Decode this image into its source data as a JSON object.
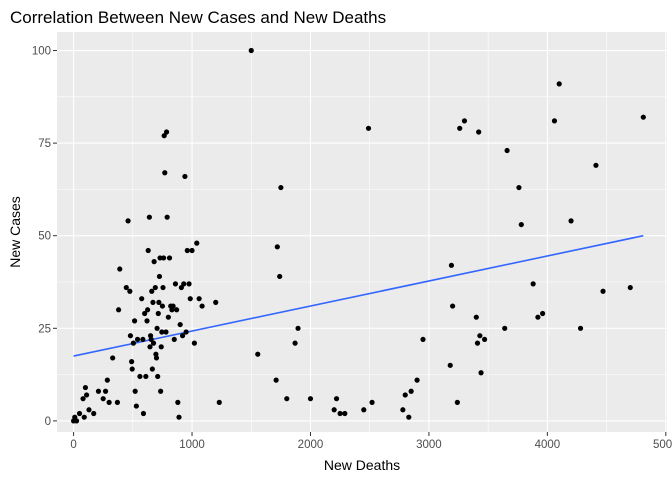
{
  "chart_data": {
    "type": "scatter",
    "title": "Correlation Between New Cases and New Deaths",
    "xlabel": "New Deaths",
    "ylabel": "New Cases",
    "xlim": [
      -140,
      5010
    ],
    "ylim": [
      -3,
      105
    ],
    "x_ticks": [
      0,
      1000,
      2000,
      3000,
      4000,
      5000
    ],
    "x_tick_labels": [
      "0",
      "1000",
      "2000",
      "3000",
      "4000",
      "5000"
    ],
    "y_ticks": [
      0,
      25,
      50,
      75,
      100
    ],
    "y_tick_labels": [
      "0",
      "25",
      "50",
      "75",
      "100"
    ],
    "grid": true,
    "legend": "none",
    "colors": {
      "panel_background": "#ebebeb",
      "grid_major": "#ffffff",
      "points": "#000000",
      "trend_line": "#3366ff"
    },
    "trend_line": {
      "x": [
        0,
        4810
      ],
      "y": [
        17.5,
        50
      ]
    },
    "points": [
      {
        "x": 0,
        "y": 0
      },
      {
        "x": 10,
        "y": 1
      },
      {
        "x": 25,
        "y": 0
      },
      {
        "x": 50,
        "y": 2
      },
      {
        "x": 80,
        "y": 6
      },
      {
        "x": 90,
        "y": 1
      },
      {
        "x": 100,
        "y": 9
      },
      {
        "x": 110,
        "y": 7
      },
      {
        "x": 130,
        "y": 3
      },
      {
        "x": 170,
        "y": 2
      },
      {
        "x": 210,
        "y": 8
      },
      {
        "x": 250,
        "y": 6
      },
      {
        "x": 270,
        "y": 8
      },
      {
        "x": 285,
        "y": 11
      },
      {
        "x": 300,
        "y": 5
      },
      {
        "x": 330,
        "y": 17
      },
      {
        "x": 370,
        "y": 5
      },
      {
        "x": 380,
        "y": 30
      },
      {
        "x": 390,
        "y": 41
      },
      {
        "x": 445,
        "y": 36
      },
      {
        "x": 460,
        "y": 54
      },
      {
        "x": 475,
        "y": 35
      },
      {
        "x": 480,
        "y": 23
      },
      {
        "x": 490,
        "y": 16
      },
      {
        "x": 495,
        "y": 14
      },
      {
        "x": 505,
        "y": 21
      },
      {
        "x": 515,
        "y": 27
      },
      {
        "x": 520,
        "y": 8
      },
      {
        "x": 530,
        "y": 4
      },
      {
        "x": 540,
        "y": 22
      },
      {
        "x": 560,
        "y": 12
      },
      {
        "x": 575,
        "y": 33
      },
      {
        "x": 585,
        "y": 22
      },
      {
        "x": 590,
        "y": 2
      },
      {
        "x": 600,
        "y": 29
      },
      {
        "x": 610,
        "y": 12
      },
      {
        "x": 620,
        "y": 27
      },
      {
        "x": 625,
        "y": 30
      },
      {
        "x": 630,
        "y": 46
      },
      {
        "x": 640,
        "y": 55
      },
      {
        "x": 645,
        "y": 20
      },
      {
        "x": 650,
        "y": 23
      },
      {
        "x": 655,
        "y": 22
      },
      {
        "x": 660,
        "y": 35
      },
      {
        "x": 665,
        "y": 14
      },
      {
        "x": 670,
        "y": 32
      },
      {
        "x": 675,
        "y": 21
      },
      {
        "x": 680,
        "y": 43
      },
      {
        "x": 690,
        "y": 36
      },
      {
        "x": 695,
        "y": 18
      },
      {
        "x": 700,
        "y": 17
      },
      {
        "x": 705,
        "y": 25
      },
      {
        "x": 710,
        "y": 12
      },
      {
        "x": 715,
        "y": 29
      },
      {
        "x": 720,
        "y": 32
      },
      {
        "x": 725,
        "y": 39
      },
      {
        "x": 730,
        "y": 44
      },
      {
        "x": 735,
        "y": 8
      },
      {
        "x": 740,
        "y": 20
      },
      {
        "x": 745,
        "y": 24
      },
      {
        "x": 750,
        "y": 31
      },
      {
        "x": 755,
        "y": 36
      },
      {
        "x": 760,
        "y": 44
      },
      {
        "x": 765,
        "y": 77
      },
      {
        "x": 770,
        "y": 67
      },
      {
        "x": 780,
        "y": 24
      },
      {
        "x": 785,
        "y": 78
      },
      {
        "x": 790,
        "y": 55
      },
      {
        "x": 800,
        "y": 28
      },
      {
        "x": 810,
        "y": 44
      },
      {
        "x": 820,
        "y": 31
      },
      {
        "x": 830,
        "y": 30
      },
      {
        "x": 840,
        "y": 31
      },
      {
        "x": 850,
        "y": 22
      },
      {
        "x": 860,
        "y": 37
      },
      {
        "x": 870,
        "y": 30
      },
      {
        "x": 880,
        "y": 5
      },
      {
        "x": 890,
        "y": 1
      },
      {
        "x": 900,
        "y": 26
      },
      {
        "x": 910,
        "y": 36
      },
      {
        "x": 920,
        "y": 23
      },
      {
        "x": 930,
        "y": 37
      },
      {
        "x": 940,
        "y": 66
      },
      {
        "x": 950,
        "y": 24
      },
      {
        "x": 960,
        "y": 46
      },
      {
        "x": 975,
        "y": 37
      },
      {
        "x": 985,
        "y": 33
      },
      {
        "x": 1000,
        "y": 46
      },
      {
        "x": 1020,
        "y": 21
      },
      {
        "x": 1040,
        "y": 48
      },
      {
        "x": 1060,
        "y": 33
      },
      {
        "x": 1085,
        "y": 31
      },
      {
        "x": 1200,
        "y": 32
      },
      {
        "x": 1230,
        "y": 5
      },
      {
        "x": 1500,
        "y": 100
      },
      {
        "x": 1555,
        "y": 18
      },
      {
        "x": 1710,
        "y": 11
      },
      {
        "x": 1720,
        "y": 47
      },
      {
        "x": 1740,
        "y": 39
      },
      {
        "x": 1750,
        "y": 63
      },
      {
        "x": 1800,
        "y": 6
      },
      {
        "x": 1870,
        "y": 21
      },
      {
        "x": 1895,
        "y": 25
      },
      {
        "x": 2000,
        "y": 6
      },
      {
        "x": 2200,
        "y": 3
      },
      {
        "x": 2220,
        "y": 6
      },
      {
        "x": 2250,
        "y": 2
      },
      {
        "x": 2290,
        "y": 2
      },
      {
        "x": 2450,
        "y": 3
      },
      {
        "x": 2490,
        "y": 79
      },
      {
        "x": 2520,
        "y": 5
      },
      {
        "x": 2780,
        "y": 3
      },
      {
        "x": 2800,
        "y": 7
      },
      {
        "x": 2830,
        "y": 1
      },
      {
        "x": 2850,
        "y": 8
      },
      {
        "x": 2900,
        "y": 11
      },
      {
        "x": 2950,
        "y": 22
      },
      {
        "x": 3180,
        "y": 15
      },
      {
        "x": 3190,
        "y": 42
      },
      {
        "x": 3200,
        "y": 31
      },
      {
        "x": 3240,
        "y": 5
      },
      {
        "x": 3260,
        "y": 79
      },
      {
        "x": 3300,
        "y": 81
      },
      {
        "x": 3400,
        "y": 28
      },
      {
        "x": 3410,
        "y": 21
      },
      {
        "x": 3420,
        "y": 78
      },
      {
        "x": 3430,
        "y": 23
      },
      {
        "x": 3440,
        "y": 13
      },
      {
        "x": 3470,
        "y": 22
      },
      {
        "x": 3640,
        "y": 25
      },
      {
        "x": 3660,
        "y": 73
      },
      {
        "x": 3760,
        "y": 63
      },
      {
        "x": 3780,
        "y": 53
      },
      {
        "x": 3880,
        "y": 37
      },
      {
        "x": 3920,
        "y": 28
      },
      {
        "x": 3960,
        "y": 29
      },
      {
        "x": 4060,
        "y": 81
      },
      {
        "x": 4100,
        "y": 91
      },
      {
        "x": 4200,
        "y": 54
      },
      {
        "x": 4280,
        "y": 25
      },
      {
        "x": 4410,
        "y": 69
      },
      {
        "x": 4470,
        "y": 35
      },
      {
        "x": 4700,
        "y": 36
      },
      {
        "x": 4810,
        "y": 82
      }
    ]
  }
}
